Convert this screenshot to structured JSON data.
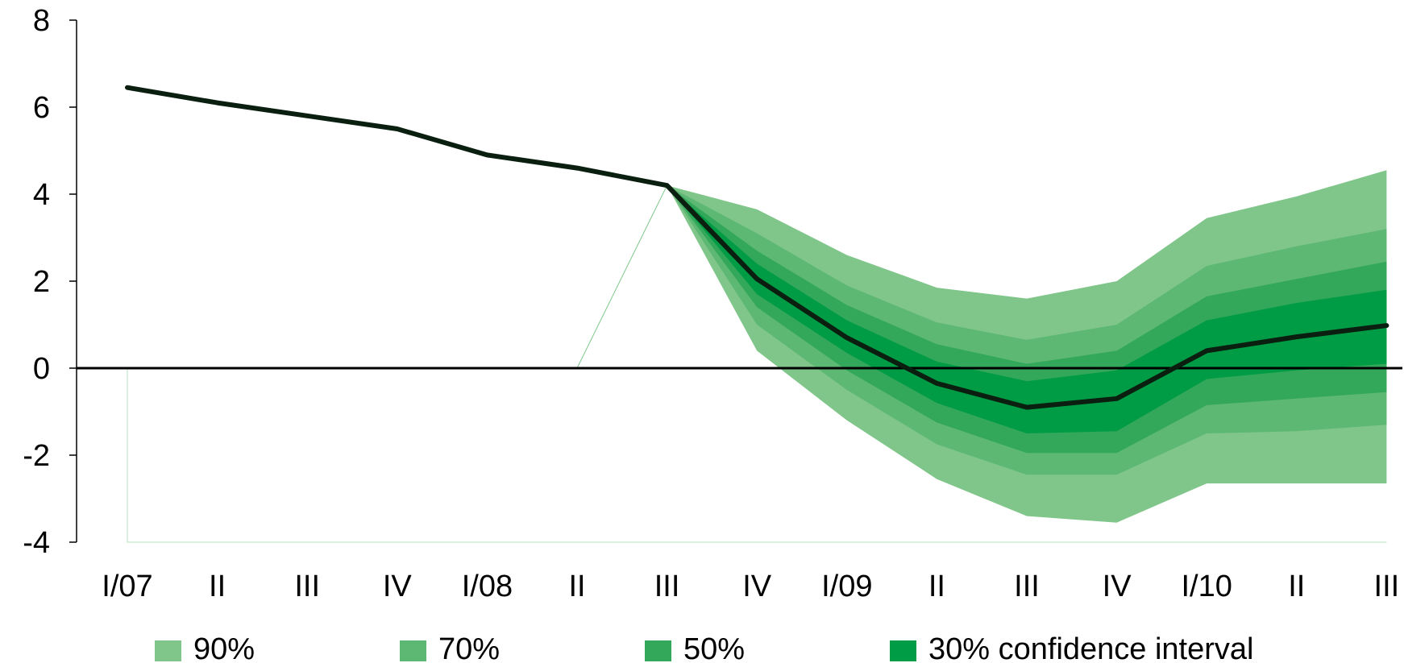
{
  "chart_data": {
    "type": "area",
    "title": "",
    "xlabel": "",
    "ylabel": "",
    "ylim": [
      -4,
      8
    ],
    "yticks": [
      "8",
      "6",
      "4",
      "2",
      "0",
      "-2",
      "-4"
    ],
    "categories": [
      "I/07",
      "II",
      "III",
      "IV",
      "I/08",
      "II",
      "III",
      "IV",
      "I/09",
      "II",
      "III",
      "IV",
      "I/10",
      "II",
      "III"
    ],
    "series": [
      {
        "values": [
          6.45,
          6.1,
          5.8,
          5.5,
          4.9,
          4.6,
          4.2,
          2.05,
          0.7,
          -0.35,
          -0.9,
          -0.7,
          0.4,
          0.72,
          0.98
        ]
      }
    ],
    "fan_bands": [
      {
        "name": "90%",
        "color": "#80c68a",
        "upper": [
          null,
          null,
          null,
          null,
          null,
          null,
          4.2,
          3.65,
          2.6,
          1.85,
          1.6,
          2.0,
          3.45,
          3.95,
          4.55
        ],
        "lower": [
          null,
          null,
          null,
          null,
          null,
          null,
          4.2,
          0.4,
          -1.2,
          -2.55,
          -3.4,
          -3.55,
          -2.65,
          -2.65,
          -2.65
        ]
      },
      {
        "name": "70%",
        "color": "#5cb872",
        "upper": [
          null,
          null,
          null,
          null,
          null,
          null,
          4.2,
          3.1,
          1.9,
          1.05,
          0.65,
          1.0,
          2.35,
          2.8,
          3.2
        ],
        "lower": [
          null,
          null,
          null,
          null,
          null,
          null,
          4.2,
          1.0,
          -0.5,
          -1.75,
          -2.45,
          -2.45,
          -1.5,
          -1.45,
          -1.3
        ]
      },
      {
        "name": "50%",
        "color": "#34a85a",
        "upper": [
          null,
          null,
          null,
          null,
          null,
          null,
          4.2,
          2.7,
          1.45,
          0.55,
          0.1,
          0.4,
          1.65,
          2.05,
          2.45
        ],
        "lower": [
          null,
          null,
          null,
          null,
          null,
          null,
          4.2,
          1.4,
          -0.05,
          -1.25,
          -1.95,
          -1.95,
          -0.85,
          -0.7,
          -0.55
        ]
      },
      {
        "name": "30% confidence interval",
        "color": "#009c45",
        "upper": [
          null,
          null,
          null,
          null,
          null,
          null,
          4.2,
          2.4,
          1.1,
          0.15,
          -0.3,
          -0.05,
          1.1,
          1.5,
          1.8
        ],
        "lower": [
          null,
          null,
          null,
          null,
          null,
          null,
          4.2,
          1.7,
          0.35,
          -0.8,
          -1.5,
          -1.45,
          -0.25,
          -0.05,
          0.1
        ]
      }
    ],
    "grid": false,
    "legend_position": "bottom",
    "line_color": "#0a1f10",
    "axis_color": "#000000"
  }
}
